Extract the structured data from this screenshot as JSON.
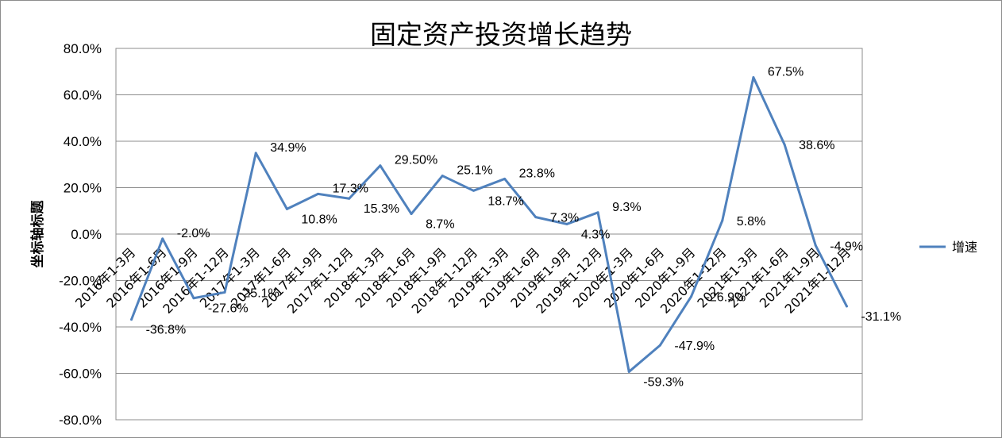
{
  "chart_data": {
    "type": "line",
    "title": "固定资产投资增长趋势",
    "ylabel": "坐标轴标题",
    "xlabel": "",
    "ylim": [
      -80,
      80
    ],
    "ytick_step": 20,
    "yticks": [
      "80.0%",
      "60.0%",
      "40.0%",
      "20.0%",
      "0.0%",
      "-20.0%",
      "-40.0%",
      "-60.0%",
      "-80.0%"
    ],
    "grid": true,
    "legend_position": "right",
    "categories": [
      "2016年1-3月",
      "2016年1-6月",
      "2016年1-9月",
      "2016年1-12月",
      "2017年1-3月",
      "2017年1-6月",
      "2017年1-9月",
      "2017年1-12月",
      "2018年1-3月",
      "2018年1-6月",
      "2018年1-9月",
      "2018年1-12月",
      "2019年1-3月",
      "2019年1-6月",
      "2019年1-9月",
      "2019年1-12月",
      "2020年1-3月",
      "2020年1-6月",
      "2020年1-9月",
      "2020年1-12月",
      "2021年1-3月",
      "2021年1-6月",
      "2021年1-9月",
      "2021年1-12月"
    ],
    "series": [
      {
        "name": "增速",
        "color": "#4f81bd",
        "values": [
          -36.8,
          -2.0,
          -27.6,
          -25.1,
          34.9,
          10.8,
          17.3,
          15.3,
          29.5,
          8.7,
          25.1,
          18.7,
          23.8,
          7.3,
          4.3,
          9.3,
          -59.3,
          -47.9,
          -26.9,
          5.8,
          67.5,
          38.6,
          -4.9,
          -31.1
        ],
        "labels": [
          "-36.8%",
          "-2.0%",
          "-27.6%",
          "-25.1%",
          "34.9%",
          "10.8%",
          "17.3%",
          "15.3%",
          "29.50%",
          "8.7%",
          "25.1%",
          "18.7%",
          "23.8%",
          "7.3%",
          "4.3%",
          "9.3%",
          "-59.3%",
          "-47.9%",
          "-26.9%",
          "5.8%",
          "67.5%",
          "38.6%",
          "-4.9%",
          "-31.1%"
        ]
      }
    ]
  }
}
